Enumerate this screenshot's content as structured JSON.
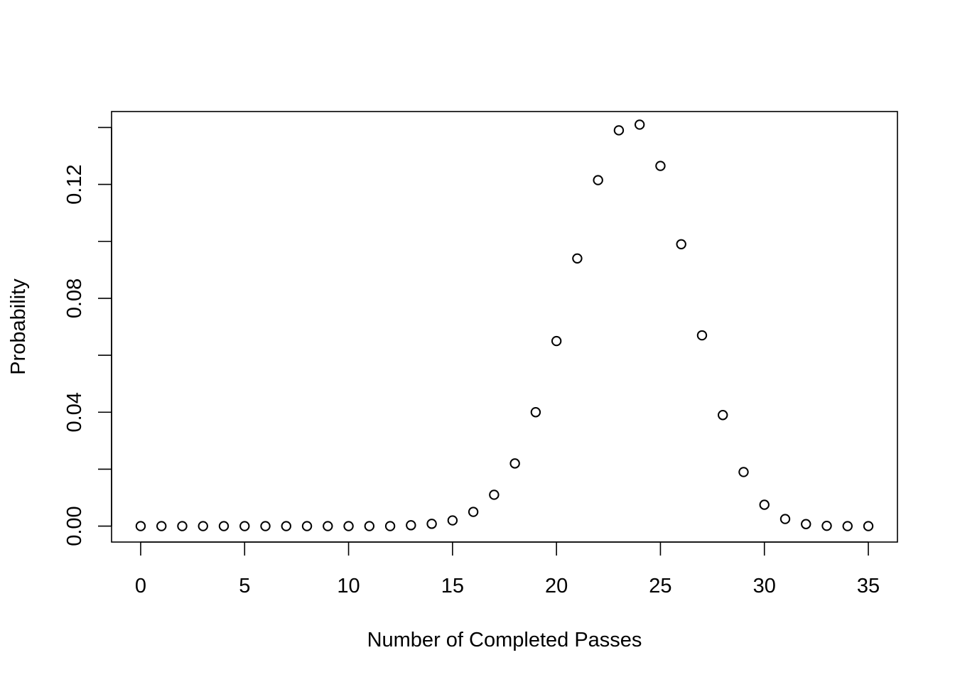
{
  "chart_data": {
    "type": "scatter",
    "title": "",
    "xlabel": "Number of Completed Passes",
    "ylabel": "Probability",
    "xlim": [
      -1.4,
      36.4
    ],
    "ylim": [
      -0.0056,
      0.1456
    ],
    "x_ticks": [
      0,
      5,
      10,
      15,
      20,
      25,
      30,
      35
    ],
    "x_tick_labels": [
      "0",
      "5",
      "10",
      "15",
      "20",
      "25",
      "30",
      "35"
    ],
    "y_ticks": [
      0.0,
      0.02,
      0.04,
      0.06,
      0.08,
      0.1,
      0.12,
      0.14
    ],
    "y_tick_labels": [
      "0.00",
      "",
      "0.04",
      "",
      "0.08",
      "",
      "0.12",
      ""
    ],
    "grid": false,
    "marker": "open-circle",
    "series": [
      {
        "x": [
          0,
          1,
          2,
          3,
          4,
          5,
          6,
          7,
          8,
          9,
          10,
          11,
          12,
          13,
          14,
          15,
          16,
          17,
          18,
          19,
          20,
          21,
          22,
          23,
          24,
          25,
          26,
          27,
          28,
          29,
          30,
          31,
          32,
          33,
          34,
          35
        ],
        "y": [
          0,
          0,
          0,
          0,
          0,
          0,
          0,
          0,
          0,
          0,
          0,
          0,
          0,
          0.0003,
          0.0008,
          0.002,
          0.005,
          0.011,
          0.022,
          0.04,
          0.065,
          0.094,
          0.1215,
          0.139,
          0.141,
          0.1265,
          0.099,
          0.067,
          0.039,
          0.019,
          0.0075,
          0.0025,
          0.0007,
          0.0001,
          0,
          0
        ]
      }
    ]
  }
}
